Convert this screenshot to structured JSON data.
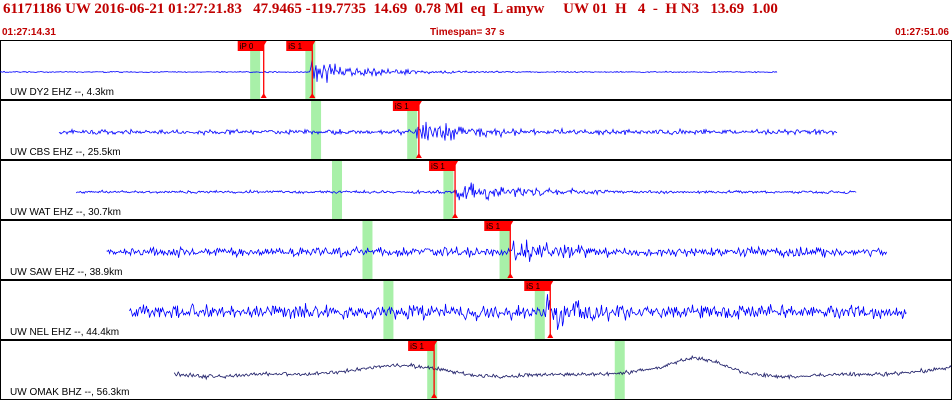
{
  "header": {
    "title": "61171186 UW 2016-06-21 01:27:21.83   47.9465 -119.7735  14.69  0.78 Ml  eq  L amyw     UW 01  H   4  -  H N3   13.69  1.00",
    "start_time": "01:27:14.31",
    "timespan": "Timespan=  37 s",
    "end_time": "01:27:51.06"
  },
  "colors": {
    "header_text": "#c00000",
    "trace": "#0000ff",
    "trace_dark": "#1a1a66",
    "pick": "#ff0000",
    "window": "#a8f0a8"
  },
  "traces": [
    {
      "label": "UW DY2 EHZ --, 4.3km",
      "color": "#0000ff",
      "data_start": 0.0,
      "data_end": 0.817,
      "window_p": 0.268,
      "window_s": 0.326,
      "pick_p": {
        "label": "iP 0",
        "pos": 0.277
      },
      "pick_s": {
        "label": "iS 1",
        "pos": 0.328
      },
      "onset": 0.325,
      "noise": 0.03,
      "signal": 0.55
    },
    {
      "label": "UW CBS EHZ --, 25.5km",
      "color": "#0000ff",
      "data_start": 0.062,
      "data_end": 0.88,
      "window_p": 0.332,
      "window_s": 0.433,
      "pick_s": {
        "label": "iS 1",
        "pos": 0.44
      },
      "onset": 0.436,
      "noise": 0.12,
      "signal": 0.55
    },
    {
      "label": "UW WAT EHZ --, 30.7km",
      "color": "#0000ff",
      "data_start": 0.08,
      "data_end": 0.9,
      "window_p": 0.354,
      "window_s": 0.471,
      "pick_s": {
        "label": "iS 1",
        "pos": 0.478
      },
      "onset": 0.477,
      "noise": 0.07,
      "signal": 0.62
    },
    {
      "label": "UW SAW EHZ --, 38.9km",
      "color": "#0000ff",
      "data_start": 0.112,
      "data_end": 0.932,
      "window_p": 0.386,
      "window_s": 0.53,
      "pick_s": {
        "label": "iS 1",
        "pos": 0.536
      },
      "onset": 0.538,
      "noise": 0.22,
      "signal": 0.55
    },
    {
      "label": "UW NEL EHZ --, 44.4km",
      "color": "#0000ff",
      "data_start": 0.136,
      "data_end": 0.953,
      "window_p": 0.408,
      "window_s": 0.567,
      "pick_s": {
        "label": "iS 1",
        "pos": 0.578
      },
      "onset": 0.574,
      "noise": 0.35,
      "signal": 0.6
    },
    {
      "label": "UW OMAK BHZ --, 56.3km",
      "color": "#1a1a66",
      "data_start": 0.183,
      "data_end": 1.0,
      "window_p": 0.454,
      "window_s": 0.651,
      "pick_s": {
        "label": "iS 1",
        "pos": 0.456
      },
      "onset": 0.46,
      "noise": 0.1,
      "signal": 0.12,
      "long_period": true
    }
  ]
}
